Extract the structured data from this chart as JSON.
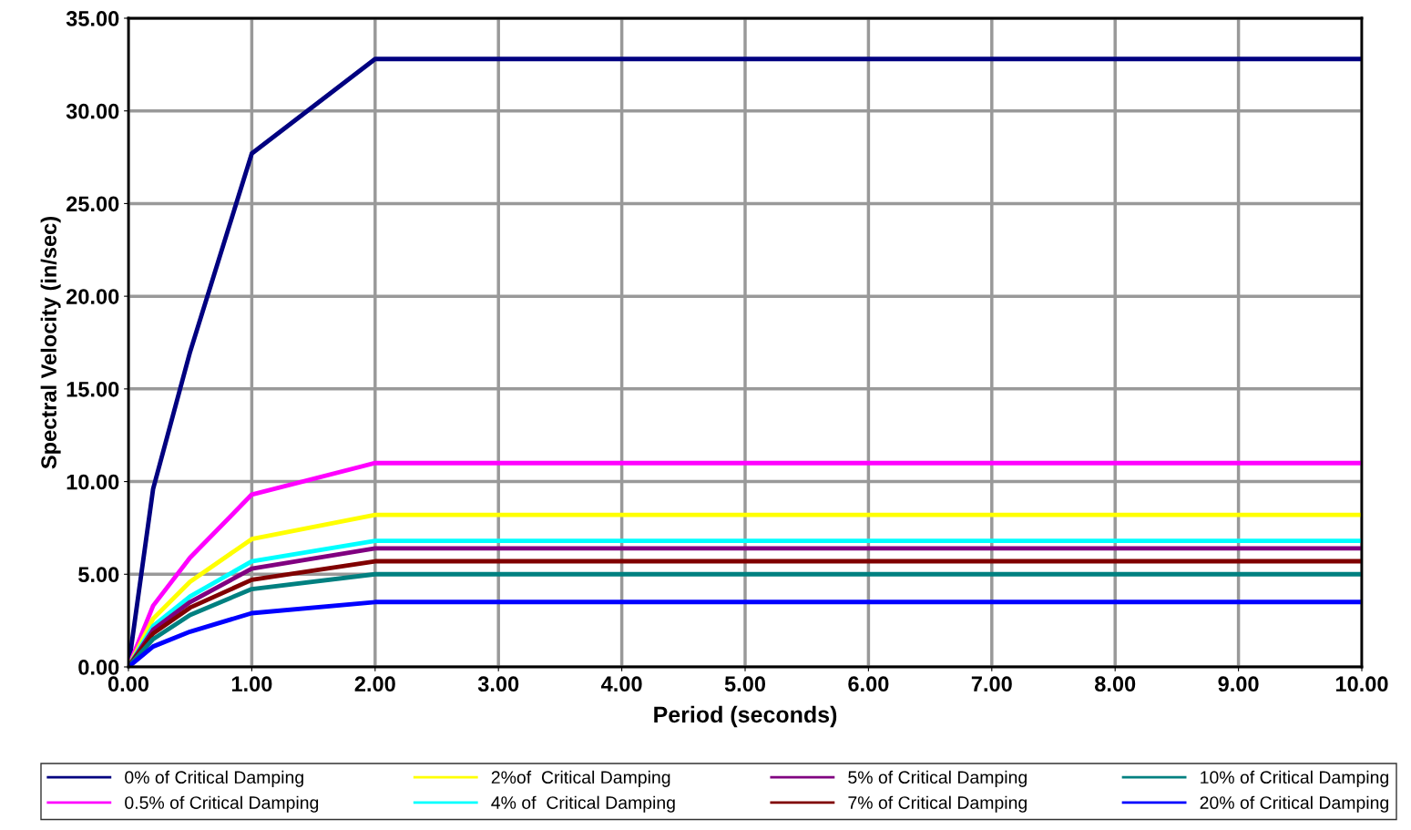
{
  "chart_data": {
    "type": "line",
    "xlabel": "Period (seconds)",
    "ylabel": "Spectral Velocity (in/sec)",
    "x": [
      0,
      0.2,
      0.5,
      1,
      2,
      10
    ],
    "series": [
      {
        "name": "0% of Critical Damping",
        "color": "#000080",
        "values": [
          0,
          9.6,
          17.0,
          27.7,
          32.8,
          32.8
        ]
      },
      {
        "name": "0.5% of Critical Damping",
        "color": "#ff00ff",
        "values": [
          0,
          3.3,
          5.9,
          9.3,
          11.0,
          11.0
        ]
      },
      {
        "name": "2%of  Critical Damping",
        "color": "#ffff00",
        "values": [
          0,
          2.6,
          4.6,
          6.9,
          8.2,
          8.2
        ]
      },
      {
        "name": "4% of  Critical Damping",
        "color": "#00ffff",
        "values": [
          0,
          2.2,
          3.8,
          5.7,
          6.8,
          6.8
        ]
      },
      {
        "name": "5% of Critical Damping",
        "color": "#800080",
        "values": [
          0,
          2.0,
          3.5,
          5.3,
          6.4,
          6.4
        ]
      },
      {
        "name": "7% of Critical Damping",
        "color": "#800000",
        "values": [
          0,
          1.8,
          3.2,
          4.7,
          5.7,
          5.7
        ]
      },
      {
        "name": "10% of Critical Damping",
        "color": "#008080",
        "values": [
          0,
          1.5,
          2.8,
          4.2,
          5.0,
          5.0
        ]
      },
      {
        "name": "20% of Critical Damping",
        "color": "#0000ff",
        "values": [
          0,
          1.1,
          1.9,
          2.9,
          3.5,
          3.5
        ]
      }
    ],
    "xlim": [
      0,
      10
    ],
    "xticks": [
      {
        "value": 0,
        "label": "0.00"
      },
      {
        "value": 1,
        "label": "1.00"
      },
      {
        "value": 2,
        "label": "2.00"
      },
      {
        "value": 3,
        "label": "3.00"
      },
      {
        "value": 4,
        "label": "4.00"
      },
      {
        "value": 5,
        "label": "5.00"
      },
      {
        "value": 6,
        "label": "6.00"
      },
      {
        "value": 7,
        "label": "7.00"
      },
      {
        "value": 8,
        "label": "8.00"
      },
      {
        "value": 9,
        "label": "9.00"
      },
      {
        "value": 10,
        "label": "10.00"
      }
    ],
    "ylim": [
      0,
      35
    ],
    "yticks": [
      {
        "value": 0,
        "label": "0.00"
      },
      {
        "value": 5,
        "label": "5.00"
      },
      {
        "value": 10,
        "label": "10.00"
      },
      {
        "value": 15,
        "label": "15.00"
      },
      {
        "value": 20,
        "label": "20.00"
      },
      {
        "value": 25,
        "label": "25.00"
      },
      {
        "value": 30,
        "label": "30.00"
      },
      {
        "value": 35,
        "label": "35.00"
      }
    ],
    "grid": true,
    "legend": "bottom",
    "marker": "none",
    "line_style": "solid"
  }
}
